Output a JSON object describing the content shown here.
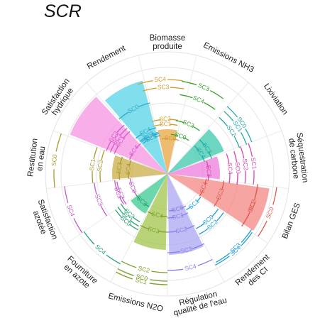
{
  "chart_data": {
    "type": "radial-bar",
    "title": "SCR",
    "axes": [
      {
        "name": "Biomasse\nproduite",
        "value": 0.0
      },
      {
        "name": "Emissions NH3",
        "value": 0.0
      },
      {
        "name": "Lixiviation",
        "value": 0.0
      },
      {
        "name": "Séquestration\nde carbone",
        "value": 0.0
      },
      {
        "name": "Bilan GES",
        "value": 0.0
      },
      {
        "name": "Rendement\ndes CI",
        "value": 0.0
      },
      {
        "name": "Régulation\nqualité de l'eau",
        "value": 0.0
      },
      {
        "name": "Emissions N2O",
        "value": 0.0
      },
      {
        "name": "Fourniture\nen azote",
        "value": 0.0
      },
      {
        "name": "Satisfaction\nazotée",
        "value": 0.0
      },
      {
        "name": "Restitution\nen eau",
        "value": 0.0
      },
      {
        "name": "Satisfaction\nhydrique",
        "value": 0.0
      },
      {
        "name": "Rendement",
        "value": 0.0
      }
    ],
    "bars": [
      {
        "axis": "Biomasse\nproduite",
        "value": 0.63,
        "color": "#E69F35"
      },
      {
        "axis": "Emissions NH3",
        "value": 0.0,
        "color": "#B4A52F"
      },
      {
        "axis": "Lixiviation",
        "value": 0.86,
        "color": "#2EC4A5"
      },
      {
        "axis": "Séquestration\nde carbone",
        "value": 0.74,
        "color": "#EB72D8"
      },
      {
        "axis": "Bilan GES",
        "value": 1.45,
        "color": "#F27F7A"
      },
      {
        "axis": "Rendement\ndes CI",
        "value": 0.0,
        "color": "#9BA82A"
      },
      {
        "axis": "Régulation\nqualité de l'eau",
        "value": 1.14,
        "color": "#A5A0F2"
      },
      {
        "axis": "Emissions N2O",
        "value": 1.07,
        "color": "#9BC23F"
      },
      {
        "axis": "Fourniture\nen azote",
        "value": 0.64,
        "color": "#2EC48A"
      },
      {
        "axis": "Satisfaction\nazotée",
        "value": 0.0,
        "color": "#A5A0F2"
      },
      {
        "axis": "Restitution\nen eau",
        "value": 0.78,
        "color": "#C4A63A"
      },
      {
        "axis": "Satisfaction\nhydrique",
        "value": 1.48,
        "color": "#F58BE0"
      },
      {
        "axis": "Rendement",
        "value": 1.36,
        "color": "#4BD1E6"
      }
    ],
    "scenario_labels": [
      {
        "text": "SC4",
        "color": "#D49A2A",
        "axis": 0,
        "r": 1.33,
        "off": -0.16,
        "rot": 4
      },
      {
        "text": "SC3",
        "color": "#D49A2A",
        "axis": 0,
        "r": 1.22,
        "off": -0.1,
        "rot": 4
      },
      {
        "text": "SC2",
        "color": "#D49A2A",
        "axis": 0,
        "r": 0.77,
        "off": -0.09,
        "rot": 4
      },
      {
        "text": "SC1",
        "color": "#D49A2A",
        "axis": 0,
        "r": 0.7,
        "off": -0.08,
        "rot": 4
      },
      {
        "text": "SC0",
        "color": "#D49A2A",
        "axis": 0,
        "r": 0.5,
        "off": 0.17,
        "rot": 4
      },
      {
        "text": "SC3",
        "color": "#33A32A",
        "axis": 1,
        "r": 1.32,
        "off": -0.18,
        "rot": 20
      },
      {
        "text": "SC4",
        "color": "#33A32A",
        "axis": 1,
        "r": 1.13,
        "off": -0.18,
        "rot": 20
      },
      {
        "text": "SC2",
        "color": "#33A32A",
        "axis": 1,
        "r": 0.76,
        "off": -0.18,
        "rot": 20
      },
      {
        "text": "SC0",
        "color": "#33A32A",
        "axis": 1,
        "r": 0.56,
        "off": -0.32,
        "rot": 20
      },
      {
        "text": "SC0",
        "color": "#23A8A8",
        "axis": 2,
        "r": 1.27,
        "off": 0.0,
        "rot": 42
      },
      {
        "text": "SC1",
        "color": "#23A8A8",
        "axis": 2,
        "r": 1.19,
        "off": 0.02,
        "rot": 42
      },
      {
        "text": "SC2",
        "color": "#23A8A8",
        "axis": 2,
        "r": 1.08,
        "off": 0.03,
        "rot": 42
      },
      {
        "text": "SC3",
        "color": "#23A8A8",
        "axis": 2,
        "r": 0.66,
        "off": 0.06,
        "rot": 42
      },
      {
        "text": "SC4",
        "color": "#23A8A8",
        "axis": 2,
        "r": 0.55,
        "off": 0.09,
        "rot": 42
      },
      {
        "text": "SC1",
        "color": "#D44BA8",
        "axis": 3,
        "r": 1.22,
        "off": 0.0,
        "rot": 70
      },
      {
        "text": "SC2",
        "color": "#D44BA8",
        "axis": 3,
        "r": 1.1,
        "off": 0.0,
        "rot": 70
      },
      {
        "text": "SC0",
        "color": "#D44BA8",
        "axis": 3,
        "r": 0.99,
        "off": 0.07,
        "rot": 70
      },
      {
        "text": "SC4",
        "color": "#D44BA8",
        "axis": 3,
        "r": 0.88,
        "off": 0.07,
        "rot": 70
      },
      {
        "text": "SC3",
        "color": "#D44BA8",
        "axis": 3,
        "r": 0.58,
        "off": 0.1,
        "rot": 70
      },
      {
        "text": "SC0",
        "color": "#E05A52",
        "axis": 4,
        "r": 1.55,
        "off": 0.0,
        "rot": 96
      },
      {
        "text": "SC1",
        "color": "#E05A52",
        "axis": 4,
        "r": 1.28,
        "off": 0.02,
        "rot": 96
      },
      {
        "text": "SC2",
        "color": "#E05A52",
        "axis": 4,
        "r": 1.28,
        "off": -0.02,
        "rot": 96
      },
      {
        "text": "SC3",
        "color": "#E05A52",
        "axis": 4,
        "r": 0.8,
        "off": 0.0,
        "rot": 96
      },
      {
        "text": "SC4",
        "color": "#E05A52",
        "axis": 4,
        "r": 0.55,
        "off": 0.0,
        "rot": 96
      },
      {
        "text": "SC4",
        "color": "#1E9FD8",
        "axis": 5,
        "r": 1.45,
        "off": 0.0,
        "rot": 125
      },
      {
        "text": "SC3",
        "color": "#1E9FD8",
        "axis": 5,
        "r": 1.42,
        "off": -0.04,
        "rot": 125
      },
      {
        "text": "SC2",
        "color": "#1E9FD8",
        "axis": 5,
        "r": 0.96,
        "off": 0.0,
        "rot": 125
      },
      {
        "text": "SC0",
        "color": "#1E9FD8",
        "axis": 5,
        "r": 0.87,
        "off": 0.0,
        "rot": 125
      },
      {
        "text": "SC1",
        "color": "#1E9FD8",
        "axis": 5,
        "r": 0.57,
        "off": 0.0,
        "rot": 125
      },
      {
        "text": "SC4",
        "color": "#8A7FE6",
        "axis": 6,
        "r": 1.36,
        "off": 0.0,
        "rot": 152
      },
      {
        "text": "SC3",
        "color": "#8A7FE6",
        "axis": 6,
        "r": 1.11,
        "off": 0.0,
        "rot": 152
      },
      {
        "text": "SC2",
        "color": "#8A7FE6",
        "axis": 6,
        "r": 0.82,
        "off": 0.0,
        "rot": 152
      },
      {
        "text": "SC1",
        "color": "#8A7FE6",
        "axis": 6,
        "r": 0.62,
        "off": 0.0,
        "rot": 152
      },
      {
        "text": "SC0",
        "color": "#8A7FE6",
        "axis": 6,
        "r": 0.52,
        "off": -0.08,
        "rot": 152
      },
      {
        "text": "SC1",
        "color": "#7DA22A",
        "axis": 7,
        "r": 1.56,
        "off": 0.0,
        "rot": 180
      },
      {
        "text": "SC0",
        "color": "#7DA22A",
        "axis": 7,
        "r": 1.51,
        "off": 0.0,
        "rot": 180
      },
      {
        "text": "SC2",
        "color": "#7DA22A",
        "axis": 7,
        "r": 1.39,
        "off": 0.0,
        "rot": 180
      },
      {
        "text": "SC3",
        "color": "#7DA22A",
        "axis": 7,
        "r": 0.82,
        "off": 0.0,
        "rot": 180
      },
      {
        "text": "SC4",
        "color": "#7DA22A",
        "axis": 7,
        "r": 0.6,
        "off": 0.0,
        "rot": 180
      },
      {
        "text": "SC4",
        "color": "#27A36E",
        "axis": 8,
        "r": 1.43,
        "off": 0.0,
        "rot": 208
      },
      {
        "text": "SC0",
        "color": "#27A36E",
        "axis": 8,
        "r": 0.89,
        "off": 0.0,
        "rot": 208
      },
      {
        "text": "SC1",
        "color": "#27A36E",
        "axis": 8,
        "r": 0.84,
        "off": 0.04,
        "rot": 208
      },
      {
        "text": "SC2",
        "color": "#27A36E",
        "axis": 8,
        "r": 0.78,
        "off": 0.08,
        "rot": 208
      },
      {
        "text": "SC3",
        "color": "#27A36E",
        "axis": 8,
        "r": 0.53,
        "off": 0.06,
        "rot": 208
      },
      {
        "text": "SC4",
        "color": "#C25BC7",
        "axis": 9,
        "r": 1.46,
        "off": 0.0,
        "rot": 236
      },
      {
        "text": "SC3",
        "color": "#C25BC7",
        "axis": 9,
        "r": 1.04,
        "off": 0.0,
        "rot": 236
      },
      {
        "text": "SC1",
        "color": "#C25BC7",
        "axis": 9,
        "r": 0.75,
        "off": 0.0,
        "rot": 236
      },
      {
        "text": "SC2",
        "color": "#C25BC7",
        "axis": 9,
        "r": 0.72,
        "off": -0.06,
        "rot": 236
      },
      {
        "text": "SC0",
        "color": "#C25BC7",
        "axis": 9,
        "r": 0.53,
        "off": 0.0,
        "rot": 236
      },
      {
        "text": "SC0",
        "color": "#A99A2A",
        "axis": 10,
        "r": 1.6,
        "off": 0.0,
        "rot": 264
      },
      {
        "text": "SC1",
        "color": "#A99A2A",
        "axis": 10,
        "r": 1.06,
        "off": 0.0,
        "rot": 264
      },
      {
        "text": "SC2",
        "color": "#A99A2A",
        "axis": 10,
        "r": 0.95,
        "off": 0.0,
        "rot": 264
      },
      {
        "text": "SC3",
        "color": "#A99A2A",
        "axis": 10,
        "r": 0.68,
        "off": 0.0,
        "rot": 264
      },
      {
        "text": "SC4",
        "color": "#A99A2A",
        "axis": 10,
        "r": 0.55,
        "off": 0.0,
        "rot": 264
      },
      {
        "text": "SC2",
        "color": "#D657C7",
        "axis": 11,
        "r": 0.92,
        "off": 0.0,
        "rot": 292
      },
      {
        "text": "SC3",
        "color": "#D657C7",
        "axis": 11,
        "r": 0.86,
        "off": 0.0,
        "rot": 292
      },
      {
        "text": "SC1",
        "color": "#D657C7",
        "axis": 11,
        "r": 0.8,
        "off": 0.0,
        "rot": 292
      },
      {
        "text": "SC4",
        "color": "#D657C7",
        "axis": 11,
        "r": 0.57,
        "off": 0.0,
        "rot": 292
      },
      {
        "text": "SC0",
        "color": "#2FA9C7",
        "axis": 12,
        "r": 1.03,
        "off": 0.0,
        "rot": 320
      },
      {
        "text": "SC4",
        "color": "#2FA9C7",
        "axis": 12,
        "r": 0.67,
        "off": 0.0,
        "rot": 320
      },
      {
        "text": "SC3",
        "color": "#2FA9C7",
        "axis": 12,
        "r": 0.6,
        "off": 0.04,
        "rot": 320
      },
      {
        "text": "SC1",
        "color": "#2FA9C7",
        "axis": 12,
        "r": 0.58,
        "off": 0.08,
        "rot": 320
      },
      {
        "text": "SC2",
        "color": "#2FA9C7",
        "axis": 12,
        "r": 0.55,
        "off": 0.12,
        "rot": 320
      }
    ],
    "grid": true
  }
}
